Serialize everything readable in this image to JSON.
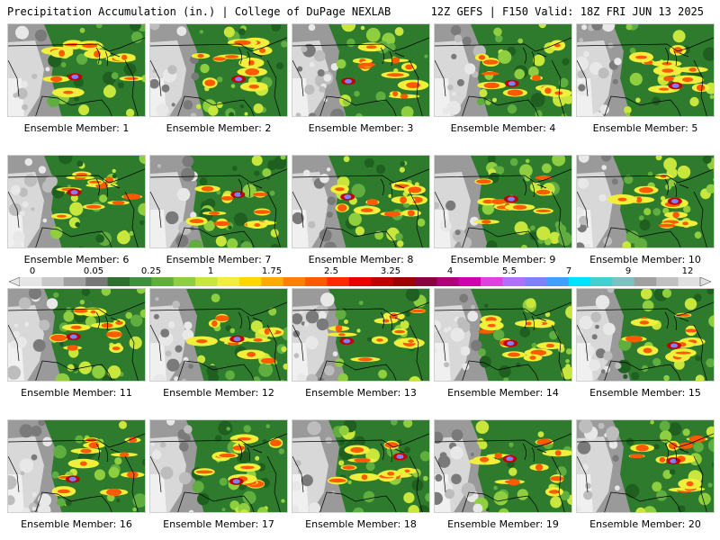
{
  "header": {
    "left": "Precipitation Accumulation (in.) | College of DuPage NEXLAB",
    "right": "12Z GEFS | F150 Valid: 18Z FRI JUN 13 2025"
  },
  "panels": [
    {
      "label": "Ensemble Member: 1"
    },
    {
      "label": "Ensemble Member: 2"
    },
    {
      "label": "Ensemble Member: 3"
    },
    {
      "label": "Ensemble Member: 4"
    },
    {
      "label": "Ensemble Member: 5"
    },
    {
      "label": "Ensemble Member: 6"
    },
    {
      "label": "Ensemble Member: 7"
    },
    {
      "label": "Ensemble Member: 8"
    },
    {
      "label": "Ensemble Member: 9"
    },
    {
      "label": "Ensemble Member: 10"
    },
    {
      "label": "Ensemble Member: 11"
    },
    {
      "label": "Ensemble Member: 12"
    },
    {
      "label": "Ensemble Member: 13"
    },
    {
      "label": "Ensemble Member: 14"
    },
    {
      "label": "Ensemble Member: 15"
    },
    {
      "label": "Ensemble Member: 16"
    },
    {
      "label": "Ensemble Member: 17"
    },
    {
      "label": "Ensemble Member: 18"
    },
    {
      "label": "Ensemble Member: 19"
    },
    {
      "label": "Ensemble Member: 20"
    }
  ],
  "colorbar": {
    "labels": [
      "0",
      "0.05",
      "0.25",
      "1",
      "1.75",
      "2.5",
      "3.25",
      "4",
      "5.5",
      "7",
      "9",
      "12"
    ],
    "colors": [
      "#e6e6e6",
      "#c8c8c8",
      "#a0a0a0",
      "#787878",
      "#2f6f2f",
      "#3f8f3f",
      "#5fae3f",
      "#8fcf3f",
      "#c8e63c",
      "#f0f03c",
      "#ffd700",
      "#ffaa00",
      "#ff8000",
      "#ff5a00",
      "#ff2a00",
      "#e60000",
      "#c00000",
      "#a00000",
      "#8b0040",
      "#b0007a",
      "#d000b0",
      "#e040e0",
      "#b070ff",
      "#8080ff",
      "#40a0ff",
      "#00e0ff",
      "#40d0d0",
      "#80c0c0",
      "#a0a0a0",
      "#c0c0c0",
      "#e0e0e0"
    ]
  }
}
